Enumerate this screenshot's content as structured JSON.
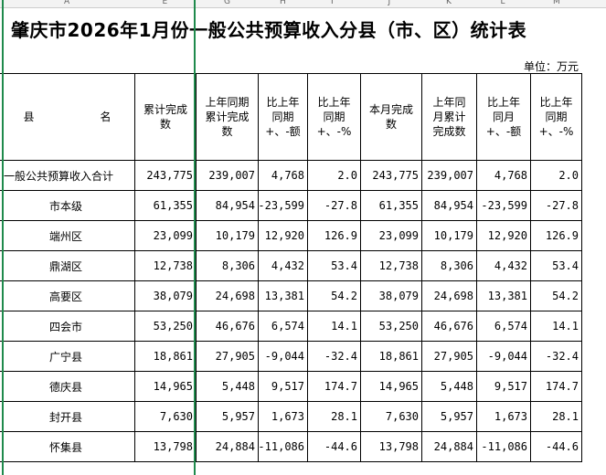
{
  "column_letters": [
    "A",
    "E",
    "G",
    "H",
    "I",
    "J",
    "K",
    "L",
    "M"
  ],
  "title": "肇庆市2026年1月份一般公共预算收入分县（市、区）统计表",
  "unit": "单位：万元",
  "headers": [
    "县　　　　　　名",
    "累计完成数",
    "上年同期累计完成数",
    "比上年同期+、-额",
    "比上年同期+、-%",
    "本月完成数",
    "上年同月累计完成数",
    "比上年同月+、-额",
    "比上年同期+、-%"
  ],
  "rows": [
    [
      "一般公共预算收入合计",
      "243,775",
      "239,007",
      "4,768",
      "2.0",
      "243,775",
      "239,007",
      "4,768",
      "2.0"
    ],
    [
      "市本级",
      "61,355",
      "84,954",
      "-23,599",
      "-27.8",
      "61,355",
      "84,954",
      "-23,599",
      "-27.8"
    ],
    [
      "端州区",
      "23,099",
      "10,179",
      "12,920",
      "126.9",
      "23,099",
      "10,179",
      "12,920",
      "126.9"
    ],
    [
      "鼎湖区",
      "12,738",
      "8,306",
      "4,432",
      "53.4",
      "12,738",
      "8,306",
      "4,432",
      "53.4"
    ],
    [
      "高要区",
      "38,079",
      "24,698",
      "13,381",
      "54.2",
      "38,079",
      "24,698",
      "13,381",
      "54.2"
    ],
    [
      "四会市",
      "53,250",
      "46,676",
      "6,574",
      "14.1",
      "53,250",
      "46,676",
      "6,574",
      "14.1"
    ],
    [
      "广宁县",
      "18,861",
      "27,905",
      "-9,044",
      "-32.4",
      "18,861",
      "27,905",
      "-9,044",
      "-32.4"
    ],
    [
      "德庆县",
      "14,965",
      "5,448",
      "9,517",
      "174.7",
      "14,965",
      "5,448",
      "9,517",
      "174.7"
    ],
    [
      "封开县",
      "7,630",
      "5,957",
      "1,673",
      "28.1",
      "7,630",
      "5,957",
      "1,673",
      "28.1"
    ],
    [
      "怀集县",
      "13,798",
      "24,884",
      "-11,086",
      "-44.6",
      "13,798",
      "24,884",
      "-11,086",
      "-44.6"
    ]
  ]
}
